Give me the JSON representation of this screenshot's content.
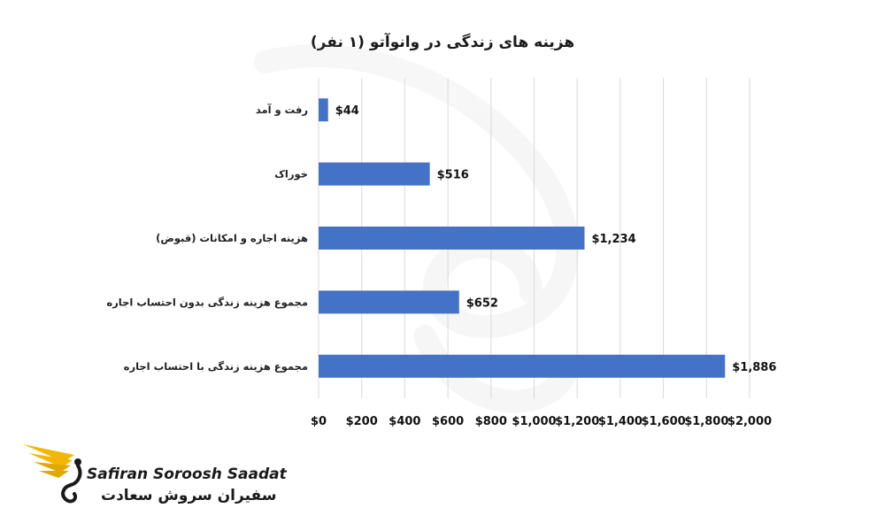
{
  "chart_data": {
    "type": "bar",
    "orientation": "horizontal",
    "title": "هزینه های زندگی در وانوآتو (۱ نفر)",
    "categories": [
      "رفت و آمد",
      "خوراک",
      "هزینه اجاره و امکانات (قبوض)",
      "مجموع هزینه زندگی بدون احتساب اجاره",
      "مجموع هزینه زندگی با احتساب اجاره"
    ],
    "values": [
      44,
      516,
      1234,
      652,
      1886
    ],
    "value_labels": [
      "$44",
      "$516",
      "$1,234",
      "$652",
      "$1,886"
    ],
    "xlim": [
      0,
      2000
    ],
    "x_ticks": [
      "$0",
      "$200",
      "$400",
      "$600",
      "$800",
      "$1,000",
      "$1,200",
      "$1,400",
      "$1,600",
      "$1,800",
      "$2,000"
    ],
    "grid": "vertical",
    "legend": "none",
    "bar_color": "#4472C4"
  },
  "logo": {
    "name_en": "Safiran Soroosh Saadat",
    "name_fa": "سفیران سروش سعادت",
    "accent_color": "#F2B705"
  }
}
